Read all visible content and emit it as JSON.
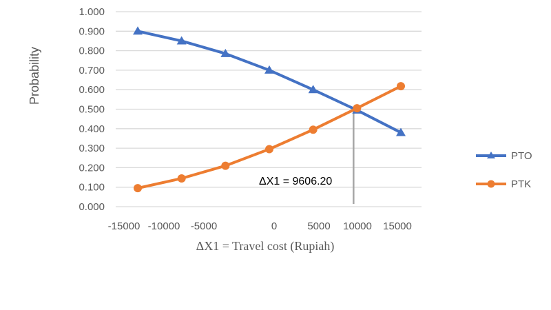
{
  "chart_data": {
    "type": "line",
    "title": "",
    "xlabel": "ΔX1 = Travel cost (Rupiah)",
    "ylabel": "Probability",
    "categories": [
      "-15000",
      "-10000",
      "-5000",
      "0",
      "5000",
      "10000",
      "15000"
    ],
    "ylim": [
      0,
      1
    ],
    "yticks": [
      "0.000",
      "0.100",
      "0.200",
      "0.300",
      "0.400",
      "0.500",
      "0.600",
      "0.700",
      "0.800",
      "0.900",
      "1.000"
    ],
    "grid": true,
    "legend_position": "right",
    "series": [
      {
        "name": "PTO",
        "color": "#4472C4",
        "marker": "triangle",
        "values": [
          0.9,
          0.85,
          0.785,
          0.7,
          0.6,
          0.495,
          0.38
        ]
      },
      {
        "name": "PTK",
        "color": "#ED7D31",
        "marker": "circle",
        "values": [
          0.095,
          0.145,
          0.21,
          0.295,
          0.395,
          0.505,
          0.618
        ]
      }
    ],
    "annotation": {
      "text": "ΔX1 = 9606.20",
      "x": 9606.2
    }
  }
}
